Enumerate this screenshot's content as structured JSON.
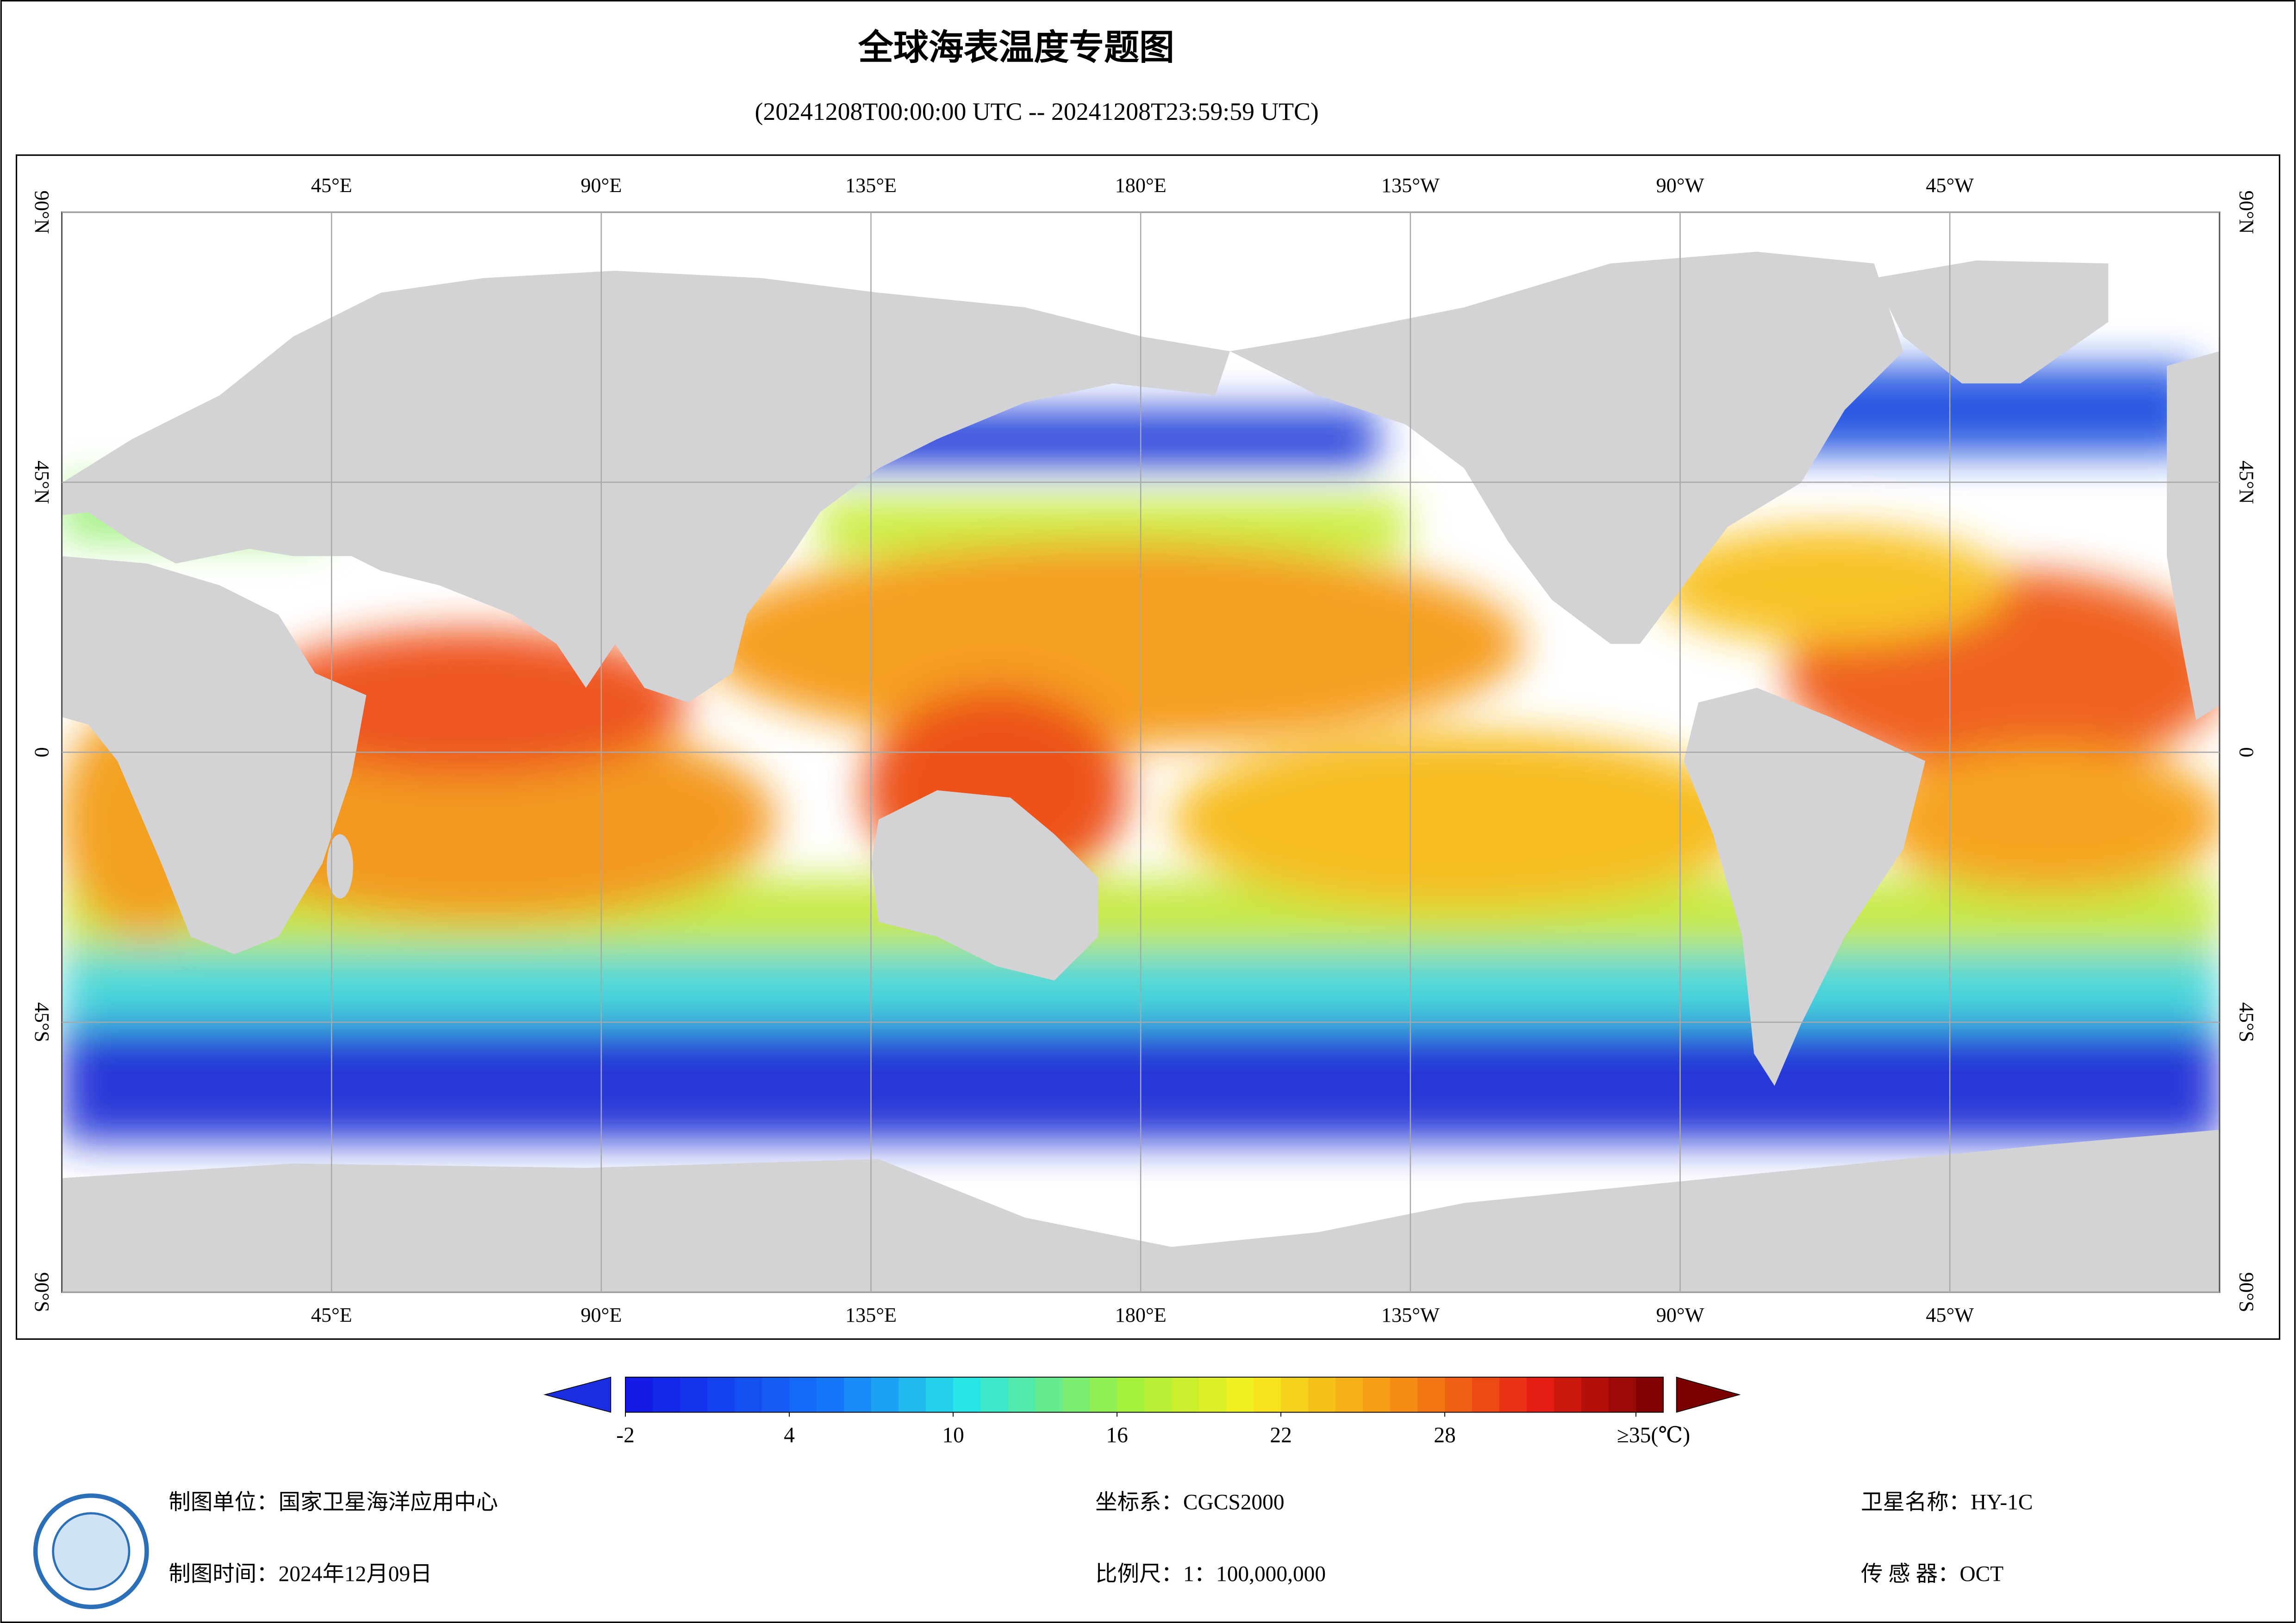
{
  "header": {
    "title": "全球海表温度专题图",
    "subtitle": "(20241208T00:00:00 UTC -- 20241208T23:59:59 UTC)"
  },
  "map": {
    "xlim": [
      0,
      360
    ],
    "ylim": [
      -90,
      90
    ],
    "lon_ticks": [
      {
        "value": 45,
        "label": "45°E"
      },
      {
        "value": 90,
        "label": "90°E"
      },
      {
        "value": 135,
        "label": "135°E"
      },
      {
        "value": 180,
        "label": "180°E"
      },
      {
        "value": 225,
        "label": "135°W"
      },
      {
        "value": 270,
        "label": "90°W"
      },
      {
        "value": 315,
        "label": "45°W"
      }
    ],
    "lat_ticks": [
      {
        "value": 90,
        "label": "90°N"
      },
      {
        "value": 45,
        "label": "45°N"
      },
      0,
      {
        "value": -45,
        "label": "45°S"
      },
      {
        "value": -90,
        "label": "90°S"
      }
    ]
  },
  "colorbar": {
    "lim": [
      -2,
      36
    ],
    "ticks": [
      -2,
      4,
      10,
      16,
      22,
      28,
      {
        "value": 35,
        "label": "≥35(℃)"
      }
    ]
  },
  "footer": {
    "left": [
      "制图单位：国家卫星海洋应用中心",
      "制图时间：2024年12月09日"
    ],
    "center": [
      "坐标系：CGCS2000",
      "比例尺：1：100,000,000"
    ],
    "right": [
      "卫星名称：HY-1C",
      "传 感 器：OCT"
    ]
  }
}
